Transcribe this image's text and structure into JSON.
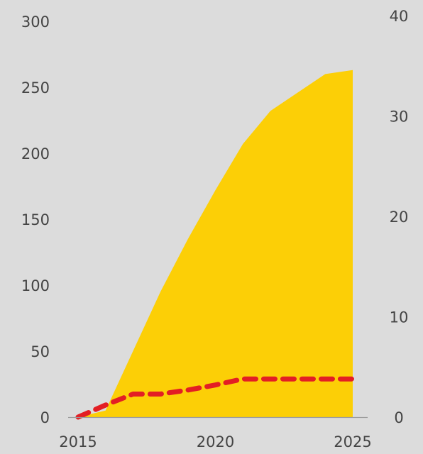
{
  "chart_data": {
    "type": "area",
    "title": "",
    "xlabel": "",
    "x_ticks": [
      "2015",
      "2020",
      "2025"
    ],
    "y_left": {
      "label": "",
      "ticks": [
        "0",
        "50",
        "100",
        "150",
        "200",
        "250",
        "300"
      ],
      "range": [
        0,
        300
      ]
    },
    "y_right": {
      "label": "",
      "ticks": [
        "0",
        "10",
        "20",
        "30",
        "40"
      ],
      "range": [
        0,
        40
      ]
    },
    "grid": false,
    "legend": "none",
    "series": [
      {
        "type": "area",
        "axis": "left",
        "color": "#fccf06",
        "x": [
          2015,
          2016,
          2017,
          2018,
          2019,
          2020,
          2021,
          2022,
          2023,
          2024,
          2025
        ],
        "y": [
          0,
          5,
          50,
          95,
          135,
          172,
          207,
          232,
          246,
          260,
          263
        ]
      },
      {
        "type": "line",
        "axis": "right",
        "style": "dashed",
        "color": "#e31e24",
        "x": [
          2015,
          2016,
          2017,
          2018,
          2019,
          2020,
          2021,
          2022,
          2023,
          2024,
          2025
        ],
        "y": [
          0,
          1.2,
          2.3,
          2.3,
          2.7,
          3.2,
          3.8,
          3.8,
          3.8,
          3.8,
          3.8
        ]
      }
    ]
  }
}
